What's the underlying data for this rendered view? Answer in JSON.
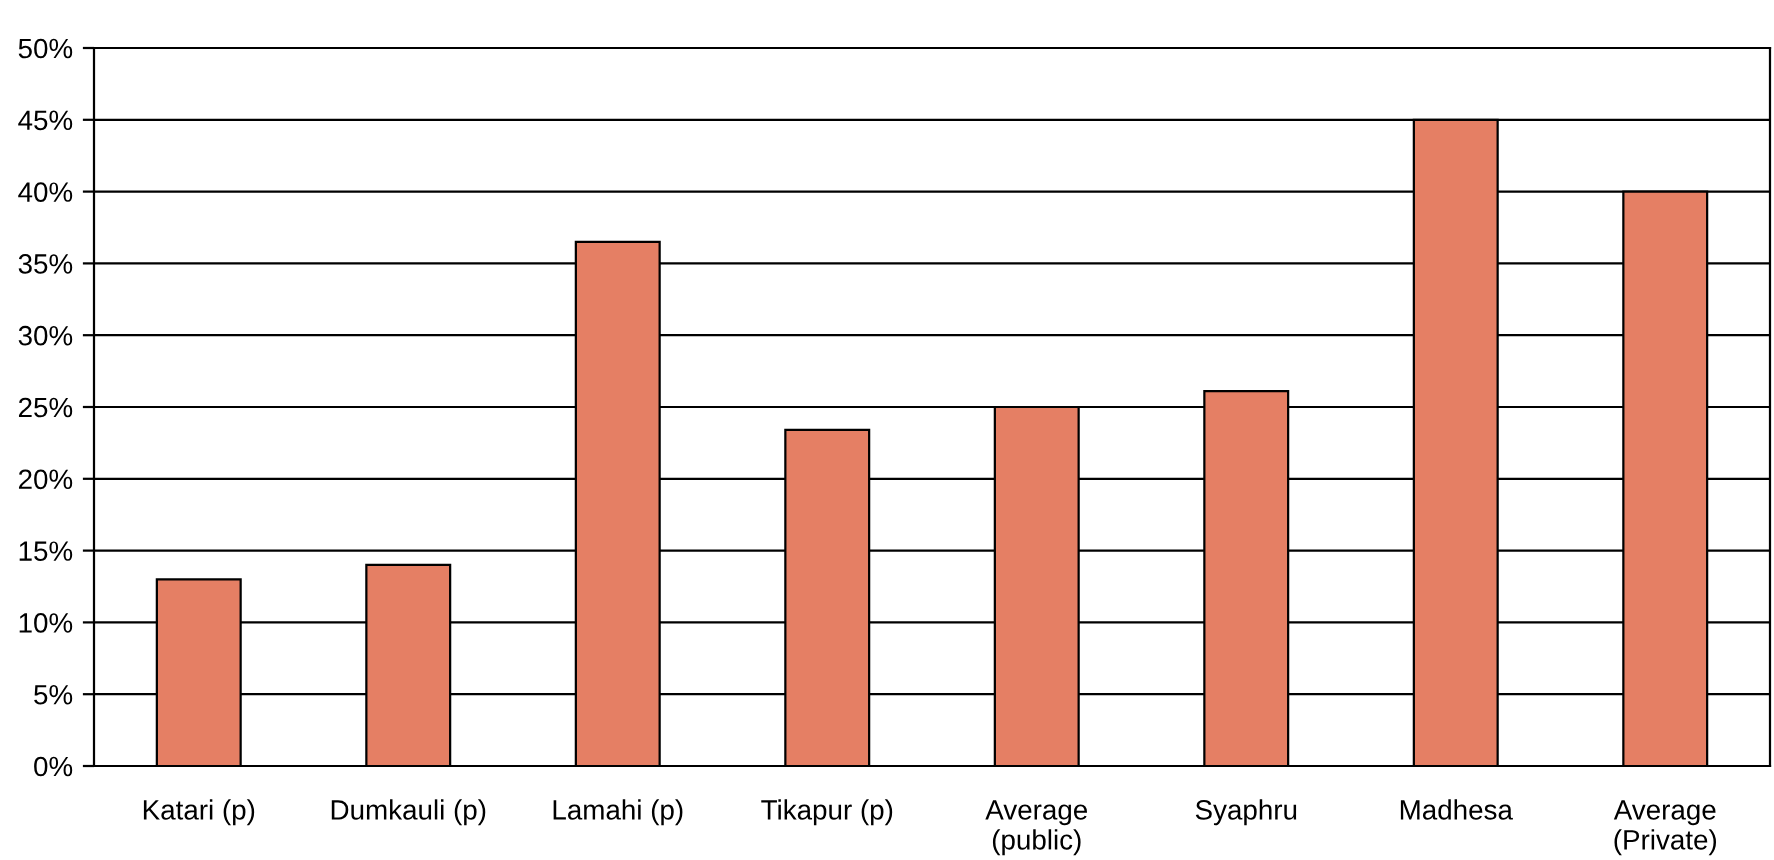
{
  "chart_data": {
    "type": "bar",
    "categories": [
      "Katari (p)",
      "Dumkauli (p)",
      "Lamahi (p)",
      "Tikapur (p)",
      "Average\n(public)",
      "Syaphru",
      "Madhesa",
      "Average\n(Private)"
    ],
    "values": [
      13,
      14,
      36.5,
      23.4,
      25,
      26.1,
      45,
      40
    ],
    "color": "#e57f64",
    "ylim": [
      0,
      50
    ],
    "yticks": [
      {
        "value": 0,
        "label": "0%"
      },
      {
        "value": 5,
        "label": "5%"
      },
      {
        "value": 10,
        "label": "10%"
      },
      {
        "value": 15,
        "label": "15%"
      },
      {
        "value": 20,
        "label": "20%"
      },
      {
        "value": 25,
        "label": "25%"
      },
      {
        "value": 30,
        "label": "30%"
      },
      {
        "value": 35,
        "label": "35%"
      },
      {
        "value": 40,
        "label": "40%"
      },
      {
        "value": 45,
        "label": "45%"
      },
      {
        "value": 50,
        "label": "50%"
      }
    ],
    "grid": "y"
  }
}
